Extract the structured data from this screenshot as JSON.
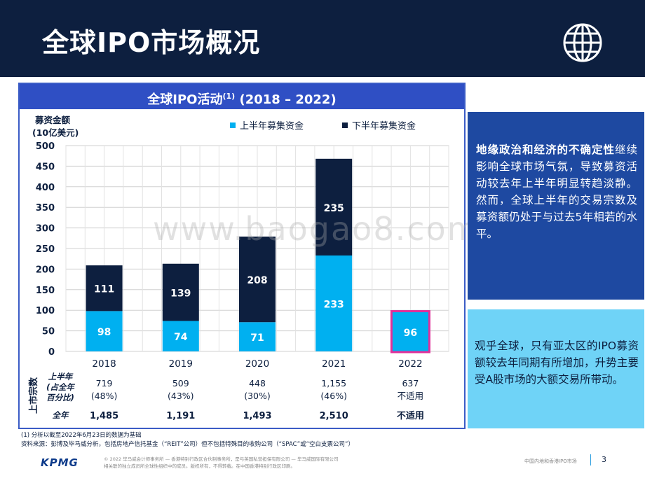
{
  "header": {
    "title": "全球IPO市场概况"
  },
  "chart_data": {
    "type": "bar",
    "title": "全球IPO活动",
    "title_sup": "(1)",
    "title_years": "(2018 – 2022)",
    "ylabel_line1": "募资金额",
    "ylabel_line2": "(10亿美元)",
    "ylim": [
      0,
      500
    ],
    "yticks": [
      0,
      50,
      100,
      150,
      200,
      250,
      300,
      350,
      400,
      450,
      500
    ],
    "categories": [
      "2018",
      "2019",
      "2020",
      "2021",
      "2022"
    ],
    "series": [
      {
        "name": "上半年募集资金",
        "color": "#00b0f0",
        "values": [
          98,
          74,
          71,
          233,
          96
        ]
      },
      {
        "name": "下半年募集资金",
        "color": "#0d1f3f",
        "values": [
          111,
          139,
          208,
          235,
          null
        ]
      }
    ],
    "highlight_index": 4,
    "highlight_color": "#e0309a"
  },
  "table": {
    "side_label": "上市宗数",
    "row1_label": [
      "上半年",
      "(占全年",
      "百分比)"
    ],
    "row1_values": [
      [
        "719",
        "(48%)"
      ],
      [
        "509",
        "(43%)"
      ],
      [
        "448",
        "(30%)"
      ],
      [
        "1,155",
        "(46%)"
      ],
      [
        "637",
        "不适用"
      ]
    ],
    "row2_label": "全年",
    "row2_values": [
      "1,485",
      "1,191",
      "1,493",
      "2,510",
      "不适用"
    ]
  },
  "box1": {
    "bold": "地缘政治和经济的不确定性",
    "text": "继续影响全球市场气氛，导致募资活动较去年上半年明显转趋淡静。然而，全球上半年的交易宗数及募资额仍处于与过去5年相若的水平。"
  },
  "box2": {
    "text": "观乎全球，只有亚太区的IPO募资额较去年同期有所增加，升势主要受A股市场的大额交易所带动。"
  },
  "footnotes": {
    "line1": "(1)   分析以截至2022年6月23日的数据为基础",
    "line2": "资料来源：彭博及毕马威分析，包括房地产信托基金（“REIT”公司）但不包括特殊目的收购公司（“SPAC”或“空白支票公司”）"
  },
  "footer": {
    "logo": "KPMG",
    "legal1": "© 2022 毕马威会计师事务所 — 香港特别行政区合伙制事务所，是与英国私营担保有限公司 — 毕马威国际有限公司",
    "legal2": "相关联的独立成员所全球性组织中的成员。版权所有，不得转载。在中国香港特别行政区印刷。",
    "right_text": "中国内地和香港IPO市场",
    "page": "3"
  },
  "watermark": "www.baogao8.com"
}
